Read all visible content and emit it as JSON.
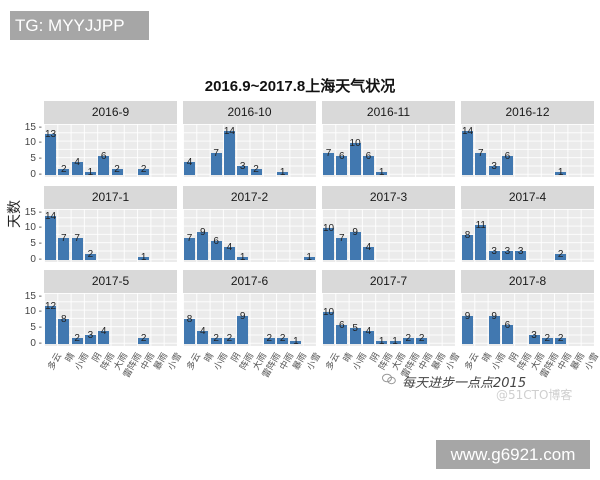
{
  "watermarks": {
    "top_left": "TG: MYYJJPP",
    "bottom_right": "www.g6921.com",
    "footer": "每天进步一点点2015",
    "footer_sub": "@51CTO博客"
  },
  "chart_data": {
    "type": "bar",
    "layout": "facet_wrap 3x4",
    "title": "2016.9~2017.8上海天气状况",
    "xlabel": "",
    "ylabel": "天数",
    "ylim": [
      0,
      15
    ],
    "yticks": [
      "15",
      "10",
      "5",
      "0"
    ],
    "grid": true,
    "bar_color": "#4178b0",
    "categories": [
      "多云",
      "晴",
      "小雨",
      "阴",
      "阵雨",
      "大雨",
      "雷阵雨",
      "中雨",
      "暴雨",
      "小雪"
    ],
    "panels": [
      {
        "name": "2016-9",
        "values": [
          13,
          2,
          4,
          1,
          6,
          2,
          0,
          2,
          0,
          0
        ]
      },
      {
        "name": "2016-10",
        "values": [
          4,
          0,
          7,
          14,
          3,
          2,
          0,
          1,
          0,
          0
        ]
      },
      {
        "name": "2016-11",
        "values": [
          7,
          6,
          10,
          6,
          1,
          0,
          0,
          0,
          0,
          0
        ]
      },
      {
        "name": "2016-12",
        "values": [
          14,
          7,
          3,
          6,
          0,
          0,
          0,
          1,
          0,
          0
        ]
      },
      {
        "name": "2017-1",
        "values": [
          14,
          7,
          7,
          2,
          0,
          0,
          0,
          1,
          0,
          0
        ]
      },
      {
        "name": "2017-2",
        "values": [
          7,
          9,
          6,
          4,
          1,
          0,
          0,
          0,
          0,
          1
        ]
      },
      {
        "name": "2017-3",
        "values": [
          10,
          7,
          9,
          4,
          0,
          0,
          0,
          0,
          0,
          0
        ]
      },
      {
        "name": "2017-4",
        "values": [
          8,
          11,
          3,
          3,
          3,
          0,
          0,
          2,
          0,
          0
        ]
      },
      {
        "name": "2017-5",
        "values": [
          12,
          8,
          2,
          3,
          4,
          0,
          0,
          2,
          0,
          0
        ]
      },
      {
        "name": "2017-6",
        "values": [
          8,
          4,
          2,
          2,
          9,
          0,
          2,
          2,
          1,
          0
        ]
      },
      {
        "name": "2017-7",
        "values": [
          10,
          6,
          5,
          4,
          1,
          1,
          2,
          2,
          0,
          0
        ]
      },
      {
        "name": "2017-8",
        "values": [
          9,
          0,
          9,
          6,
          0,
          3,
          2,
          2,
          0,
          0
        ]
      }
    ]
  }
}
